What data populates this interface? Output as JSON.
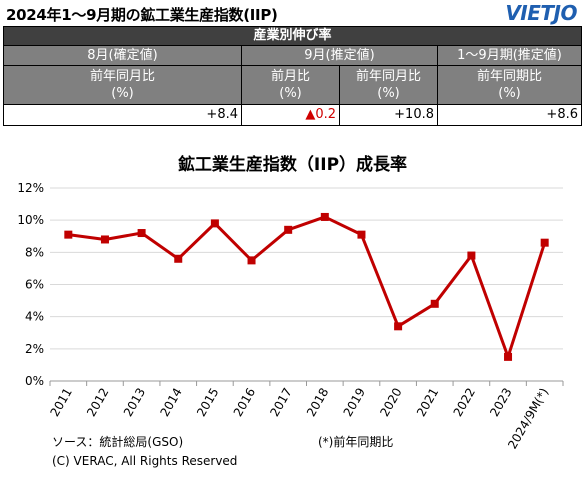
{
  "header": {
    "title": "2024年1～9月期の鉱工業生産指数(IIP)",
    "logo": "VIETJO"
  },
  "table": {
    "section_title": "産業別伸び率",
    "groups": [
      "8月(確定値)",
      "9月(推定値)",
      "1～9月期(推定値)"
    ],
    "subheaders": [
      {
        "line1": "前年同月比",
        "line2": "(%)"
      },
      {
        "line1": "前月比",
        "line2": "(%)"
      },
      {
        "line1": "前年同月比",
        "line2": "(%)"
      },
      {
        "line1": "前年同期比",
        "line2": "(%)"
      }
    ],
    "values": [
      "+8.4",
      "▲0.2",
      "+10.8",
      "+8.6"
    ]
  },
  "chart_data": {
    "type": "line",
    "title": "鉱工業生産指数（IIP）成長率",
    "categories": [
      "2011",
      "2012",
      "2013",
      "2014",
      "2015",
      "2016",
      "2017",
      "2018",
      "2019",
      "2020",
      "2021",
      "2022",
      "2023",
      "2024/9M(*)"
    ],
    "values": [
      9.1,
      8.8,
      9.2,
      7.6,
      9.8,
      7.5,
      9.4,
      10.2,
      9.1,
      3.4,
      4.8,
      7.8,
      1.5,
      8.6
    ],
    "ylim": [
      0,
      12
    ],
    "yticks": [
      0,
      2,
      4,
      6,
      8,
      10,
      12
    ],
    "ytick_labels": [
      "0%",
      "2%",
      "4%",
      "6%",
      "8%",
      "10%",
      "12%"
    ],
    "line_color": "#c00000",
    "grid": true,
    "legend": "none"
  },
  "footer": {
    "source": "ソース：統計総局(GSO)",
    "note": "(*)前年同期比",
    "copyright": "(C) VERAC, All Rights Reserved"
  }
}
